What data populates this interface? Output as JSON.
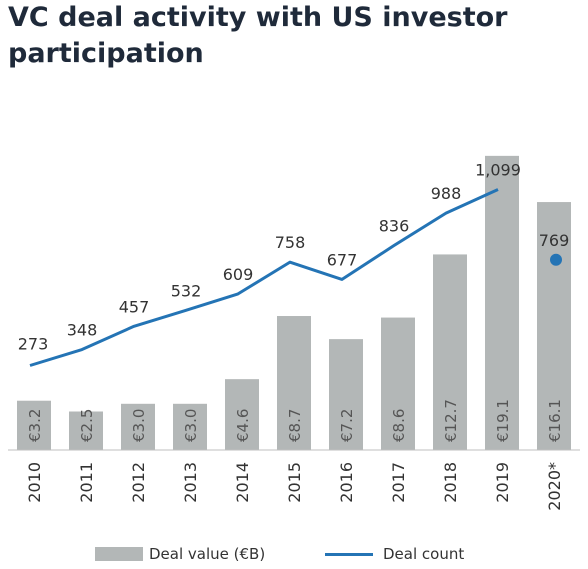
{
  "title": "VC deal activity with US investor participation",
  "chart_data": {
    "type": "bar",
    "categories": [
      "2010",
      "2011",
      "2012",
      "2013",
      "2014",
      "2015",
      "2016",
      "2017",
      "2018",
      "2019",
      "2020*"
    ],
    "bar_series": {
      "name": "Deal value (€B)",
      "values": [
        3.2,
        2.5,
        3.0,
        3.0,
        4.6,
        8.7,
        7.2,
        8.6,
        12.7,
        19.1,
        16.1
      ],
      "labels": [
        "€3.2",
        "€2.5",
        "€3.0",
        "€3.0",
        "€4.6",
        "€8.7",
        "€7.2",
        "€8.6",
        "€12.7",
        "€19.1",
        "€16.1"
      ],
      "color": "#b3b7b7"
    },
    "line_series": {
      "name": "Deal count",
      "values": [
        273,
        348,
        457,
        532,
        609,
        758,
        677,
        836,
        988,
        1099,
        null
      ],
      "labels": [
        "273",
        "348",
        "457",
        "532",
        "609",
        "758",
        "677",
        "836",
        "988",
        "1,099",
        ""
      ],
      "point": {
        "category": "2020*",
        "value": 769,
        "label": "769"
      },
      "color": "#2474b5"
    },
    "legend": [
      "Deal value (€B)",
      "Deal count"
    ],
    "legend_position": "bottom",
    "grid": false
  }
}
